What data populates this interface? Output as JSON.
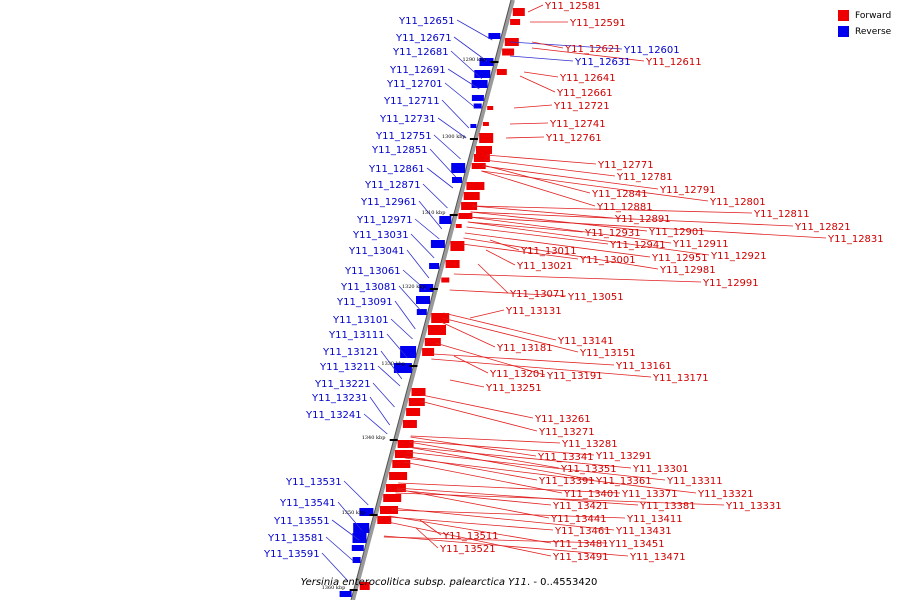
{
  "legend": {
    "forward_label": "Forward",
    "reverse_label": "Reverse",
    "forward_color": "#ee0000",
    "reverse_color": "#0000ee"
  },
  "caption": {
    "organism": "Yersinia enterocolitica subsp. palearctica Y11",
    "range": ". - 0..4553420"
  },
  "scale_ticks": [
    "1290 kbp",
    "1300 kbp",
    "1310 kbp",
    "1320 kbp",
    "1330 kbp",
    "1340 kbp",
    "1350 kbp",
    "1360 kbp"
  ],
  "reverse_genes": [
    "Y11_12651",
    "Y11_12671",
    "Y11_12681",
    "Y11_12691",
    "Y11_12701",
    "Y11_12711",
    "Y11_12731",
    "Y11_12751",
    "Y11_12851",
    "Y11_12861",
    "Y11_12871",
    "Y11_12961",
    "Y11_12971",
    "Y11_13031",
    "Y11_13041",
    "Y11_13061",
    "Y11_13081",
    "Y11_13091",
    "Y11_13101",
    "Y11_13111",
    "Y11_13121",
    "Y11_13211",
    "Y11_13221",
    "Y11_13231",
    "Y11_13241",
    "Y11_13531",
    "Y11_13541",
    "Y11_13551",
    "Y11_13581",
    "Y11_13591",
    "Y11_12601",
    "Y11_12631"
  ],
  "forward_genes": [
    "Y11_12581",
    "Y11_12591",
    "Y11_12621",
    "Y11_12611",
    "Y11_12641",
    "Y11_12661",
    "Y11_12721",
    "Y11_12741",
    "Y11_12761",
    "Y11_12771",
    "Y11_12781",
    "Y11_12791",
    "Y11_12801",
    "Y11_12811",
    "Y11_12821",
    "Y11_12831",
    "Y11_12841",
    "Y11_12881",
    "Y11_12891",
    "Y11_12901",
    "Y11_12911",
    "Y11_12921",
    "Y11_12931",
    "Y11_12941",
    "Y11_12951",
    "Y11_12981",
    "Y11_12991",
    "Y11_13001",
    "Y11_13011",
    "Y11_13021",
    "Y11_13051",
    "Y11_13071",
    "Y11_13131",
    "Y11_13141",
    "Y11_13151",
    "Y11_13161",
    "Y11_13171",
    "Y11_13181",
    "Y11_13191",
    "Y11_13201",
    "Y11_13251",
    "Y11_13261",
    "Y11_13271",
    "Y11_13281",
    "Y11_13291",
    "Y11_13301",
    "Y11_13311",
    "Y11_13321",
    "Y11_13331",
    "Y11_13341",
    "Y11_13351",
    "Y11_13361",
    "Y11_13371",
    "Y11_13381",
    "Y11_13391",
    "Y11_13401",
    "Y11_13411",
    "Y11_13421",
    "Y11_13431",
    "Y11_13441",
    "Y11_13451",
    "Y11_13461",
    "Y11_13471",
    "Y11_13481",
    "Y11_13491",
    "Y11_13511",
    "Y11_13521"
  ]
}
